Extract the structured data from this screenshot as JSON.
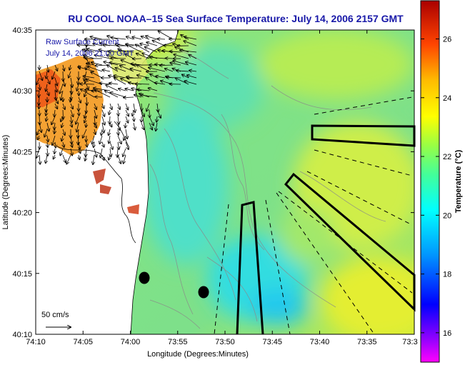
{
  "title": "RU COOL  NOAA–15  Sea Surface Temperature:  July 14, 2006 2157 GMT",
  "legend": {
    "line1": "Raw Surface Current",
    "line2": "July 14, 2006 21:00 GMT",
    "scale_label": "50 cm/s"
  },
  "axes": {
    "xlabel": "Longitude (Degrees:Minutes)",
    "ylabel": "Latitude (Degrees:Minutes)",
    "x_ticks": [
      "74:10",
      "74:05",
      "74:00",
      "73:55",
      "73:50",
      "73:45",
      "73:40",
      "73:35",
      "73:3"
    ],
    "y_ticks": [
      "40:35",
      "40:30",
      "40:25",
      "40:20",
      "40:15",
      "40:10"
    ]
  },
  "colorbar": {
    "label": "Temperature (°C)",
    "ticks": [
      "26",
      "24",
      "22",
      "20",
      "18",
      "16"
    ],
    "range": [
      15,
      27.3
    ],
    "colormap": "jet"
  },
  "colors": {
    "title": "#1818a8",
    "legend_text": "#1818a8",
    "land": "#ffffff",
    "ocean_dominant": "#7fe38a"
  },
  "markers": {
    "buoys": 2
  }
}
